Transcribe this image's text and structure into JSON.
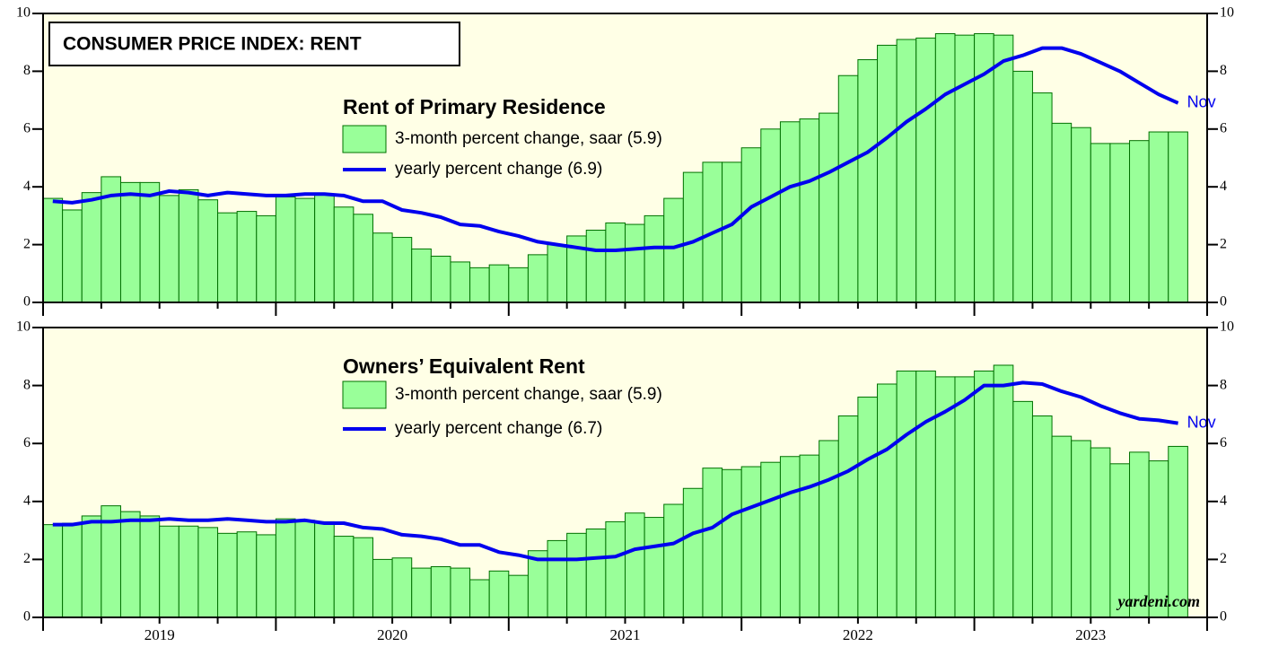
{
  "title": "CONSUMER PRICE INDEX: RENT",
  "credit": "yardeni.com",
  "chart_data": [
    {
      "type": "bar_line",
      "subtitle": "Rent of Primary Residence",
      "categories": [
        null,
        null,
        null,
        null,
        null,
        null,
        "2019",
        null,
        null,
        null,
        null,
        null,
        null,
        null,
        null,
        null,
        null,
        null,
        "2020",
        null,
        null,
        null,
        null,
        null,
        null,
        null,
        null,
        null,
        null,
        null,
        "2021",
        null,
        null,
        null,
        null,
        null,
        null,
        null,
        null,
        null,
        null,
        null,
        "2022",
        null,
        null,
        null,
        null,
        null,
        null,
        null,
        null,
        null,
        null,
        null,
        "2023",
        null,
        null,
        null,
        null,
        null
      ],
      "ylim": [
        0,
        10
      ],
      "yticks": [
        0,
        2,
        4,
        6,
        8,
        10
      ],
      "grid": false,
      "plot_background": "#ffffe6",
      "series": [
        {
          "name": "3-month percent change, saar (5.9)",
          "type": "bar",
          "color": "#99ff99",
          "edge_color": "#007000",
          "values": [
            3.6,
            3.2,
            3.8,
            4.35,
            4.15,
            4.15,
            3.7,
            3.9,
            3.55,
            3.1,
            3.15,
            3.0,
            3.65,
            3.6,
            3.75,
            3.3,
            3.05,
            2.4,
            2.25,
            1.85,
            1.6,
            1.4,
            1.2,
            1.3,
            1.2,
            1.65,
            2.0,
            2.3,
            2.5,
            2.75,
            2.7,
            3.0,
            3.6,
            4.5,
            4.85,
            4.85,
            5.35,
            6.0,
            6.25,
            6.35,
            6.55,
            7.85,
            8.4,
            8.9,
            9.1,
            9.15,
            9.3,
            9.25,
            9.3,
            9.25,
            8.0,
            7.25,
            6.2,
            6.05,
            5.5,
            5.5,
            5.6,
            5.9,
            5.9,
            null
          ]
        },
        {
          "name": "yearly percent change (6.9)",
          "type": "line",
          "color": "#0000ee",
          "end_label": "Nov",
          "values": [
            3.5,
            3.45,
            3.55,
            3.7,
            3.75,
            3.7,
            3.85,
            3.8,
            3.7,
            3.8,
            3.75,
            3.7,
            3.7,
            3.75,
            3.75,
            3.7,
            3.5,
            3.5,
            3.2,
            3.1,
            2.95,
            2.7,
            2.65,
            2.45,
            2.3,
            2.1,
            2.0,
            1.9,
            1.8,
            1.8,
            1.85,
            1.9,
            1.9,
            2.1,
            2.4,
            2.7,
            3.3,
            3.65,
            4.0,
            4.2,
            4.5,
            4.85,
            5.2,
            5.7,
            6.25,
            6.7,
            7.2,
            7.55,
            7.9,
            8.35,
            8.55,
            8.8,
            8.8,
            8.6,
            8.3,
            8.0,
            7.6,
            7.2,
            6.9,
            null
          ]
        }
      ]
    },
    {
      "type": "bar_line",
      "subtitle": "Owners’ Equivalent Rent",
      "categories": [
        null,
        null,
        null,
        null,
        null,
        null,
        "2019",
        null,
        null,
        null,
        null,
        null,
        null,
        null,
        null,
        null,
        null,
        null,
        "2020",
        null,
        null,
        null,
        null,
        null,
        null,
        null,
        null,
        null,
        null,
        null,
        "2021",
        null,
        null,
        null,
        null,
        null,
        null,
        null,
        null,
        null,
        null,
        null,
        "2022",
        null,
        null,
        null,
        null,
        null,
        null,
        null,
        null,
        null,
        null,
        null,
        "2023",
        null,
        null,
        null,
        null,
        null
      ],
      "ylim": [
        0,
        10
      ],
      "yticks": [
        0,
        2,
        4,
        6,
        8,
        10
      ],
      "grid": false,
      "plot_background": "#ffffe6",
      "series": [
        {
          "name": "3-month percent change, saar (5.9)",
          "type": "bar",
          "color": "#99ff99",
          "edge_color": "#007000",
          "values": [
            3.2,
            3.25,
            3.5,
            3.85,
            3.65,
            3.5,
            3.15,
            3.15,
            3.1,
            2.9,
            2.95,
            2.85,
            3.4,
            3.35,
            3.3,
            2.8,
            2.75,
            2.0,
            2.05,
            1.7,
            1.75,
            1.7,
            1.3,
            1.6,
            1.45,
            2.3,
            2.65,
            2.9,
            3.05,
            3.3,
            3.6,
            3.45,
            3.9,
            4.45,
            5.15,
            5.1,
            5.2,
            5.35,
            5.55,
            5.6,
            6.1,
            6.95,
            7.6,
            8.05,
            8.5,
            8.5,
            8.3,
            8.3,
            8.5,
            8.7,
            7.45,
            6.95,
            6.25,
            6.1,
            5.85,
            5.3,
            5.7,
            5.4,
            5.9,
            null
          ]
        },
        {
          "name": "yearly percent change (6.7)",
          "type": "line",
          "color": "#0000ee",
          "end_label": "Nov",
          "values": [
            3.2,
            3.2,
            3.3,
            3.3,
            3.35,
            3.35,
            3.4,
            3.35,
            3.35,
            3.4,
            3.35,
            3.3,
            3.3,
            3.35,
            3.25,
            3.25,
            3.1,
            3.05,
            2.85,
            2.8,
            2.7,
            2.5,
            2.5,
            2.25,
            2.15,
            2.0,
            2.0,
            2.0,
            2.05,
            2.1,
            2.35,
            2.45,
            2.55,
            2.9,
            3.1,
            3.55,
            3.8,
            4.05,
            4.3,
            4.5,
            4.75,
            5.05,
            5.45,
            5.8,
            6.3,
            6.75,
            7.1,
            7.5,
            8.0,
            8.0,
            8.1,
            8.05,
            7.8,
            7.6,
            7.3,
            7.05,
            6.85,
            6.8,
            6.7,
            null
          ]
        }
      ]
    }
  ]
}
